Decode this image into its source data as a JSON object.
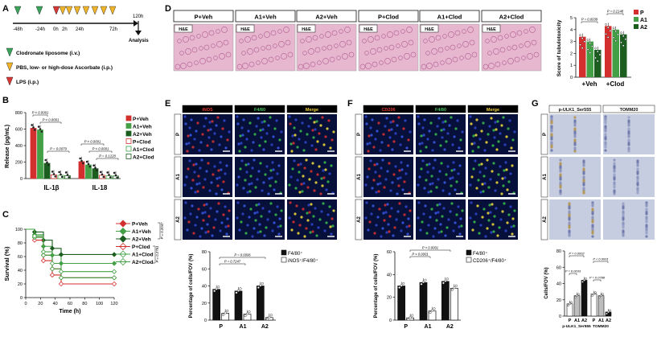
{
  "panels": {
    "A": {
      "letter": "A",
      "timepoints": [
        "-48h",
        "-24h",
        "0h",
        "2h",
        "24h",
        "72h",
        "120h"
      ],
      "analysis_label": "Analysis",
      "legend": [
        {
          "text": "Clodronate liposome (i.v.)",
          "color": "#3aa55a"
        },
        {
          "text": "PBS, low- or high-dose Ascorbate (i.p.)",
          "color": "#f0b429"
        },
        {
          "text": "LPS (i.p.)",
          "color": "#d93636"
        }
      ]
    },
    "D": {
      "letter": "D",
      "groups": [
        "P+Veh",
        "A1+Veh",
        "A2+Veh",
        "P+Clod",
        "A1+Clod",
        "A2+Clod"
      ],
      "stain_label": "H&E"
    },
    "E": {
      "letter": "E",
      "columns": [
        "iNOS",
        "F4/80",
        "Merge"
      ],
      "rows": [
        "P",
        "A1",
        "A2"
      ]
    },
    "F": {
      "letter": "F",
      "columns": [
        "CD206",
        "F4/80",
        "Merge"
      ],
      "rows": [
        "P",
        "A1",
        "A2"
      ]
    },
    "G": {
      "letter": "G",
      "columns": [
        "p-ULK1_Ser555",
        "TOMM20"
      ],
      "rows": [
        "P",
        "A1",
        "A2"
      ]
    },
    "B": {
      "letter": "B"
    },
    "C": {
      "letter": "C"
    }
  },
  "colors": {
    "P": "#d32f2f",
    "A1": "#43a047",
    "A2": "#1b5e20",
    "black": "#111111"
  },
  "chart_data": [
    {
      "id": "B",
      "type": "bar",
      "ylabel": "Release (pg/mL)",
      "ylim": [
        0,
        800
      ],
      "yticks": [
        0,
        200,
        400,
        600,
        800
      ],
      "categories": [
        "IL-1β",
        "IL-18"
      ],
      "series": [
        {
          "name": "P+Veh",
          "values": [
            610,
            205
          ]
        },
        {
          "name": "A1+Veh",
          "values": [
            590,
            165
          ]
        },
        {
          "name": "A2+Veh",
          "values": [
            185,
            120
          ]
        },
        {
          "name": "P+Clod",
          "values": [
            45,
            40
          ]
        },
        {
          "name": "A1+Clod",
          "values": [
            40,
            35
          ]
        },
        {
          "name": "A2+Clod",
          "values": [
            35,
            30
          ]
        }
      ],
      "annotations": [
        "P < 0.0001",
        "P < 0.0001",
        "P = 0.0079",
        "P < 0.0001",
        "P < 0.0001",
        "P = 0.1220"
      ]
    },
    {
      "id": "C",
      "type": "line",
      "xlabel": "Time (h)",
      "ylabel": "Survival (%)",
      "xlim": [
        0,
        120
      ],
      "ylim": [
        0,
        100
      ],
      "xticks": [
        0,
        20,
        40,
        60,
        80,
        100,
        120
      ],
      "yticks": [
        0,
        20,
        40,
        60,
        80,
        100
      ],
      "series": [
        {
          "name": "P+Veh",
          "x": [
            0,
            12,
            24,
            36,
            48,
            120
          ],
          "y": [
            100,
            88,
            62,
            42,
            29,
            29
          ]
        },
        {
          "name": "A1+Veh",
          "x": [
            0,
            12,
            24,
            36,
            48,
            120
          ],
          "y": [
            100,
            92,
            75,
            62,
            50,
            50
          ]
        },
        {
          "name": "A2+Veh",
          "x": [
            0,
            12,
            24,
            36,
            48,
            120
          ],
          "y": [
            100,
            96,
            84,
            72,
            63,
            63
          ]
        },
        {
          "name": "P+Clod",
          "x": [
            0,
            12,
            24,
            36,
            48,
            120
          ],
          "y": [
            100,
            84,
            54,
            33,
            20,
            20
          ]
        },
        {
          "name": "A1+Clod",
          "x": [
            0,
            12,
            24,
            36,
            48,
            120
          ],
          "y": [
            100,
            88,
            62,
            42,
            29,
            29
          ]
        },
        {
          "name": "A2+Clod",
          "x": [
            0,
            12,
            24,
            36,
            48,
            120
          ],
          "y": [
            100,
            90,
            67,
            50,
            38,
            38
          ]
        }
      ],
      "annotations": [
        "P = 0.2047",
        "P = 0.2761"
      ]
    },
    {
      "id": "D-score",
      "type": "bar",
      "ylabel": "Score of tubulotoxicity",
      "ylim": [
        0,
        5
      ],
      "yticks": [
        0,
        1,
        2,
        3,
        4,
        5
      ],
      "categories": [
        "+Veh",
        "+Clod"
      ],
      "series": [
        {
          "name": "P",
          "values": [
            3.4,
            4.3
          ]
        },
        {
          "name": "A1",
          "values": [
            3.0,
            4.0
          ]
        },
        {
          "name": "A2",
          "values": [
            2.3,
            3.6
          ]
        }
      ],
      "annotations": [
        "P = 0.0039",
        "P = 0.2148"
      ]
    },
    {
      "id": "E-quant",
      "type": "bar",
      "ylabel": "Percentage of cells/FOV (%)",
      "ylim": [
        0,
        80
      ],
      "yticks": [
        0,
        20,
        40,
        60,
        80
      ],
      "categories": [
        "P",
        "A1",
        "A2"
      ],
      "series": [
        {
          "name": "F4/80⁺",
          "values": [
            36,
            34,
            40
          ]
        },
        {
          "name": "iNOS⁺/F4/80⁺",
          "values": [
            8,
            7,
            3
          ]
        }
      ],
      "annotations": [
        "P = 0.7247",
        "P = 0.0006"
      ]
    },
    {
      "id": "F-quant",
      "type": "bar",
      "ylabel": "Percentage of cells/FOV (%)",
      "ylim": [
        0,
        60
      ],
      "yticks": [
        0,
        20,
        40,
        60
      ],
      "categories": [
        "P",
        "A1",
        "A2"
      ],
      "series": [
        {
          "name": "F4/80⁺",
          "values": [
            30,
            33,
            34
          ]
        },
        {
          "name": "CD206⁺/F4/80⁺",
          "values": [
            2,
            8,
            28
          ]
        }
      ],
      "annotations": [
        "P < 0.0001",
        "P < 0.0001"
      ]
    },
    {
      "id": "G-quant",
      "type": "bar",
      "ylabel": "Cells/FOV (%)",
      "ylim": [
        0,
        80
      ],
      "yticks": [
        0,
        20,
        40,
        60,
        80
      ],
      "categories": [
        "P",
        "A1",
        "A2",
        "P",
        "A1",
        "A2"
      ],
      "group_labels": [
        "p-ULK1_Ser555",
        "TOMM20"
      ],
      "values": [
        15,
        25,
        44,
        27,
        25,
        5
      ],
      "annotations": [
        "P = 0.0002",
        "P = 0.0033",
        "P < 0.0001",
        "P = 0.0788"
      ]
    }
  ]
}
